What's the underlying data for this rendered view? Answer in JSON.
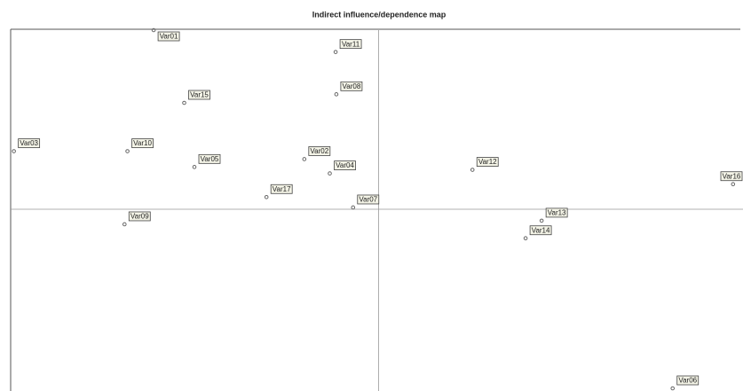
{
  "chart_data": {
    "type": "scatter",
    "title": "Indirect influence/dependence map",
    "labels": [
      "Var01",
      "Var11",
      "Var08",
      "Var15",
      "Var03",
      "Var10",
      "Var05",
      "Var02",
      "Var04",
      "Var12",
      "Var16",
      "Var17",
      "Var07",
      "Var09",
      "Var13",
      "Var14",
      "Var06"
    ],
    "x": [
      19.4,
      44.4,
      44.5,
      23.6,
      0.2,
      15.8,
      25.0,
      40.1,
      43.6,
      63.2,
      99,
      34.9,
      46.8,
      15.4,
      72.7,
      70.5,
      90.7
    ],
    "series": [
      {
        "color": "#666666",
        "values": [
          100,
          93.9,
          82.1,
          79.7,
          66.2,
          66.2,
          61.8,
          64.0,
          60.0,
          61.0,
          57,
          53.4,
          50.5,
          45.8,
          46.8,
          41.9,
          0
        ]
      }
    ],
    "quadrant_lines": {
      "x": 50.3,
      "y": 50
    },
    "xlim": [
      0,
      100
    ],
    "ylim": [
      0,
      100
    ]
  }
}
